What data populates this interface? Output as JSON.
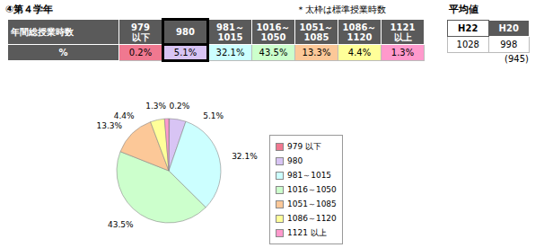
{
  "chart_data": {
    "type": "pie",
    "title": "④第４学年",
    "categories": [
      "979 以下",
      "980",
      "981～1015",
      "1016～1050",
      "1051～1085",
      "1086～1120",
      "1121 以上"
    ],
    "values": [
      0.2,
      5.1,
      32.1,
      43.5,
      13.3,
      4.4,
      1.3
    ],
    "value_labels": [
      "0.2%",
      "5.1%",
      "32.1%",
      "43.5%",
      "13.3%",
      "4.4%",
      "1.3%"
    ],
    "colors": [
      "#f07890",
      "#d8c4f4",
      "#ccffff",
      "#ccffcc",
      "#fcc898",
      "#ffff99",
      "#ff99cc"
    ],
    "data_labels": true,
    "legend": "right"
  },
  "table": {
    "note": "＊太枠は標準授業時数",
    "header": "年間総授業時数",
    "columns": [
      [
        "979",
        "以下"
      ],
      [
        "980"
      ],
      [
        "981～",
        "1015"
      ],
      [
        "1016～",
        "1050"
      ],
      [
        "1051～",
        "1085"
      ],
      [
        "1086～",
        "1120"
      ],
      [
        "1121",
        "以上"
      ]
    ],
    "row_label": "%",
    "highlight": "980"
  },
  "averages": {
    "title": "平均値",
    "columns": [
      "H22",
      "H20"
    ],
    "values": [
      1028,
      998
    ],
    "note": "(945)"
  }
}
